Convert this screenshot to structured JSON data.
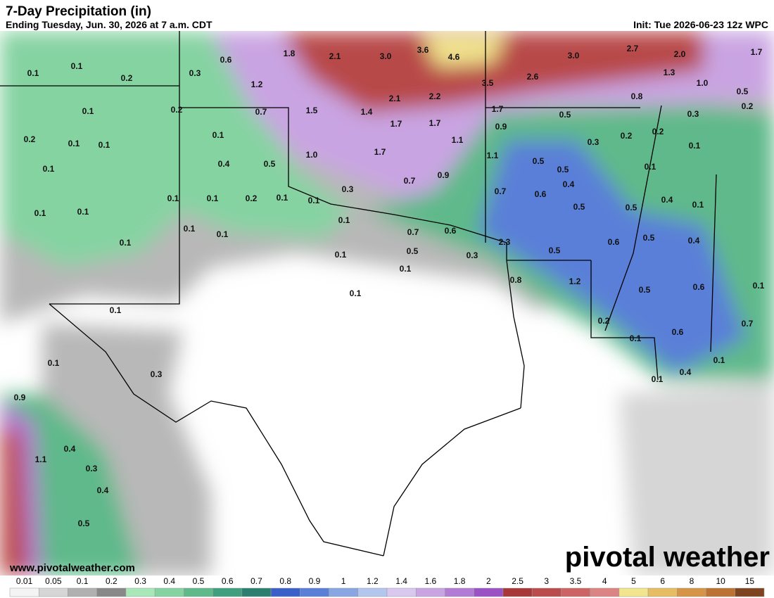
{
  "header": {
    "title": "7-Day Precipitation (in)",
    "subtitle": "Ending Tuesday, Jun. 30, 2026 at 7 a.m. CDT",
    "init": "Init: Tue 2026-06-23 12z WPC"
  },
  "map_labels": [
    "0.6",
    "1.8",
    "2.1",
    "3.0",
    "3.6",
    "4.6",
    "3.0",
    "2.7",
    "2.0",
    "1.7",
    "0.1",
    "0.1",
    "0.2",
    "0.3",
    "1.2",
    "3.5",
    "2.6",
    "1.3",
    "1.0",
    "0.5",
    "0.1",
    "0.2",
    "0.7",
    "1.5",
    "1.4",
    "2.1",
    "2.2",
    "1.7",
    "0.8",
    "0.5",
    "0.3",
    "0.2",
    "0.2",
    "0.1",
    "0.1",
    "0.1",
    "1.7",
    "1.7",
    "0.9",
    "1.1",
    "0.2",
    "0.3",
    "0.2",
    "0.1",
    "0.1",
    "0.4",
    "0.5",
    "1.0",
    "1.7",
    "1.1",
    "0.5",
    "0.5",
    "0.1",
    "0.9",
    "0.7",
    "0.3",
    "0.7",
    "0.6",
    "0.4",
    "0.4",
    "0.1",
    "0.1",
    "0.1",
    "0.2",
    "0.1",
    "0.1",
    "0.1",
    "0.1",
    "0.5",
    "0.5",
    "0.1",
    "0.7",
    "0.6",
    "0.1",
    "0.1",
    "0.1",
    "2.3",
    "0.6",
    "0.5",
    "0.4",
    "0.5",
    "0.3",
    "0.1",
    "0.5",
    "0.1",
    "0.8",
    "1.2",
    "0.5",
    "0.6",
    "0.1",
    "0.1",
    "0.1",
    "0.2",
    "0.7",
    "0.6",
    "0.1",
    "0.1",
    "0.3",
    "0.1",
    "0.4",
    "0.1",
    "0.9",
    "0.4",
    "1.1",
    "0.3",
    "0.4",
    "0.5"
  ],
  "footer": {
    "website": "www.pivotalweather.com",
    "logo": "pivotal weather"
  },
  "colorbar": {
    "labels": [
      0.01,
      0.05,
      0.1,
      0.2,
      0.3,
      0.4,
      0.5,
      0.6,
      0.7,
      0.8,
      0.9,
      1,
      1.2,
      1.4,
      1.6,
      1.8,
      2,
      2.5,
      3,
      3.5,
      4,
      5,
      6,
      8,
      10,
      15
    ],
    "colors": [
      "#f4f4f4",
      "#d6d6d6",
      "#b0b0b0",
      "#888888",
      "#a9e6b8",
      "#86d3a2",
      "#5fb98a",
      "#3f9f7f",
      "#2b7f6f",
      "#3a5fc8",
      "#5a7fd8",
      "#87a6e2",
      "#b3c6ee",
      "#d8c8f0",
      "#c9a4e2",
      "#b27cd4",
      "#9a52c4",
      "#a83838",
      "#bb4c4c",
      "#cc6464",
      "#dc8484",
      "#f2e58e",
      "#e6bd62",
      "#d69446",
      "#bb7232",
      "#7e4420"
    ]
  }
}
